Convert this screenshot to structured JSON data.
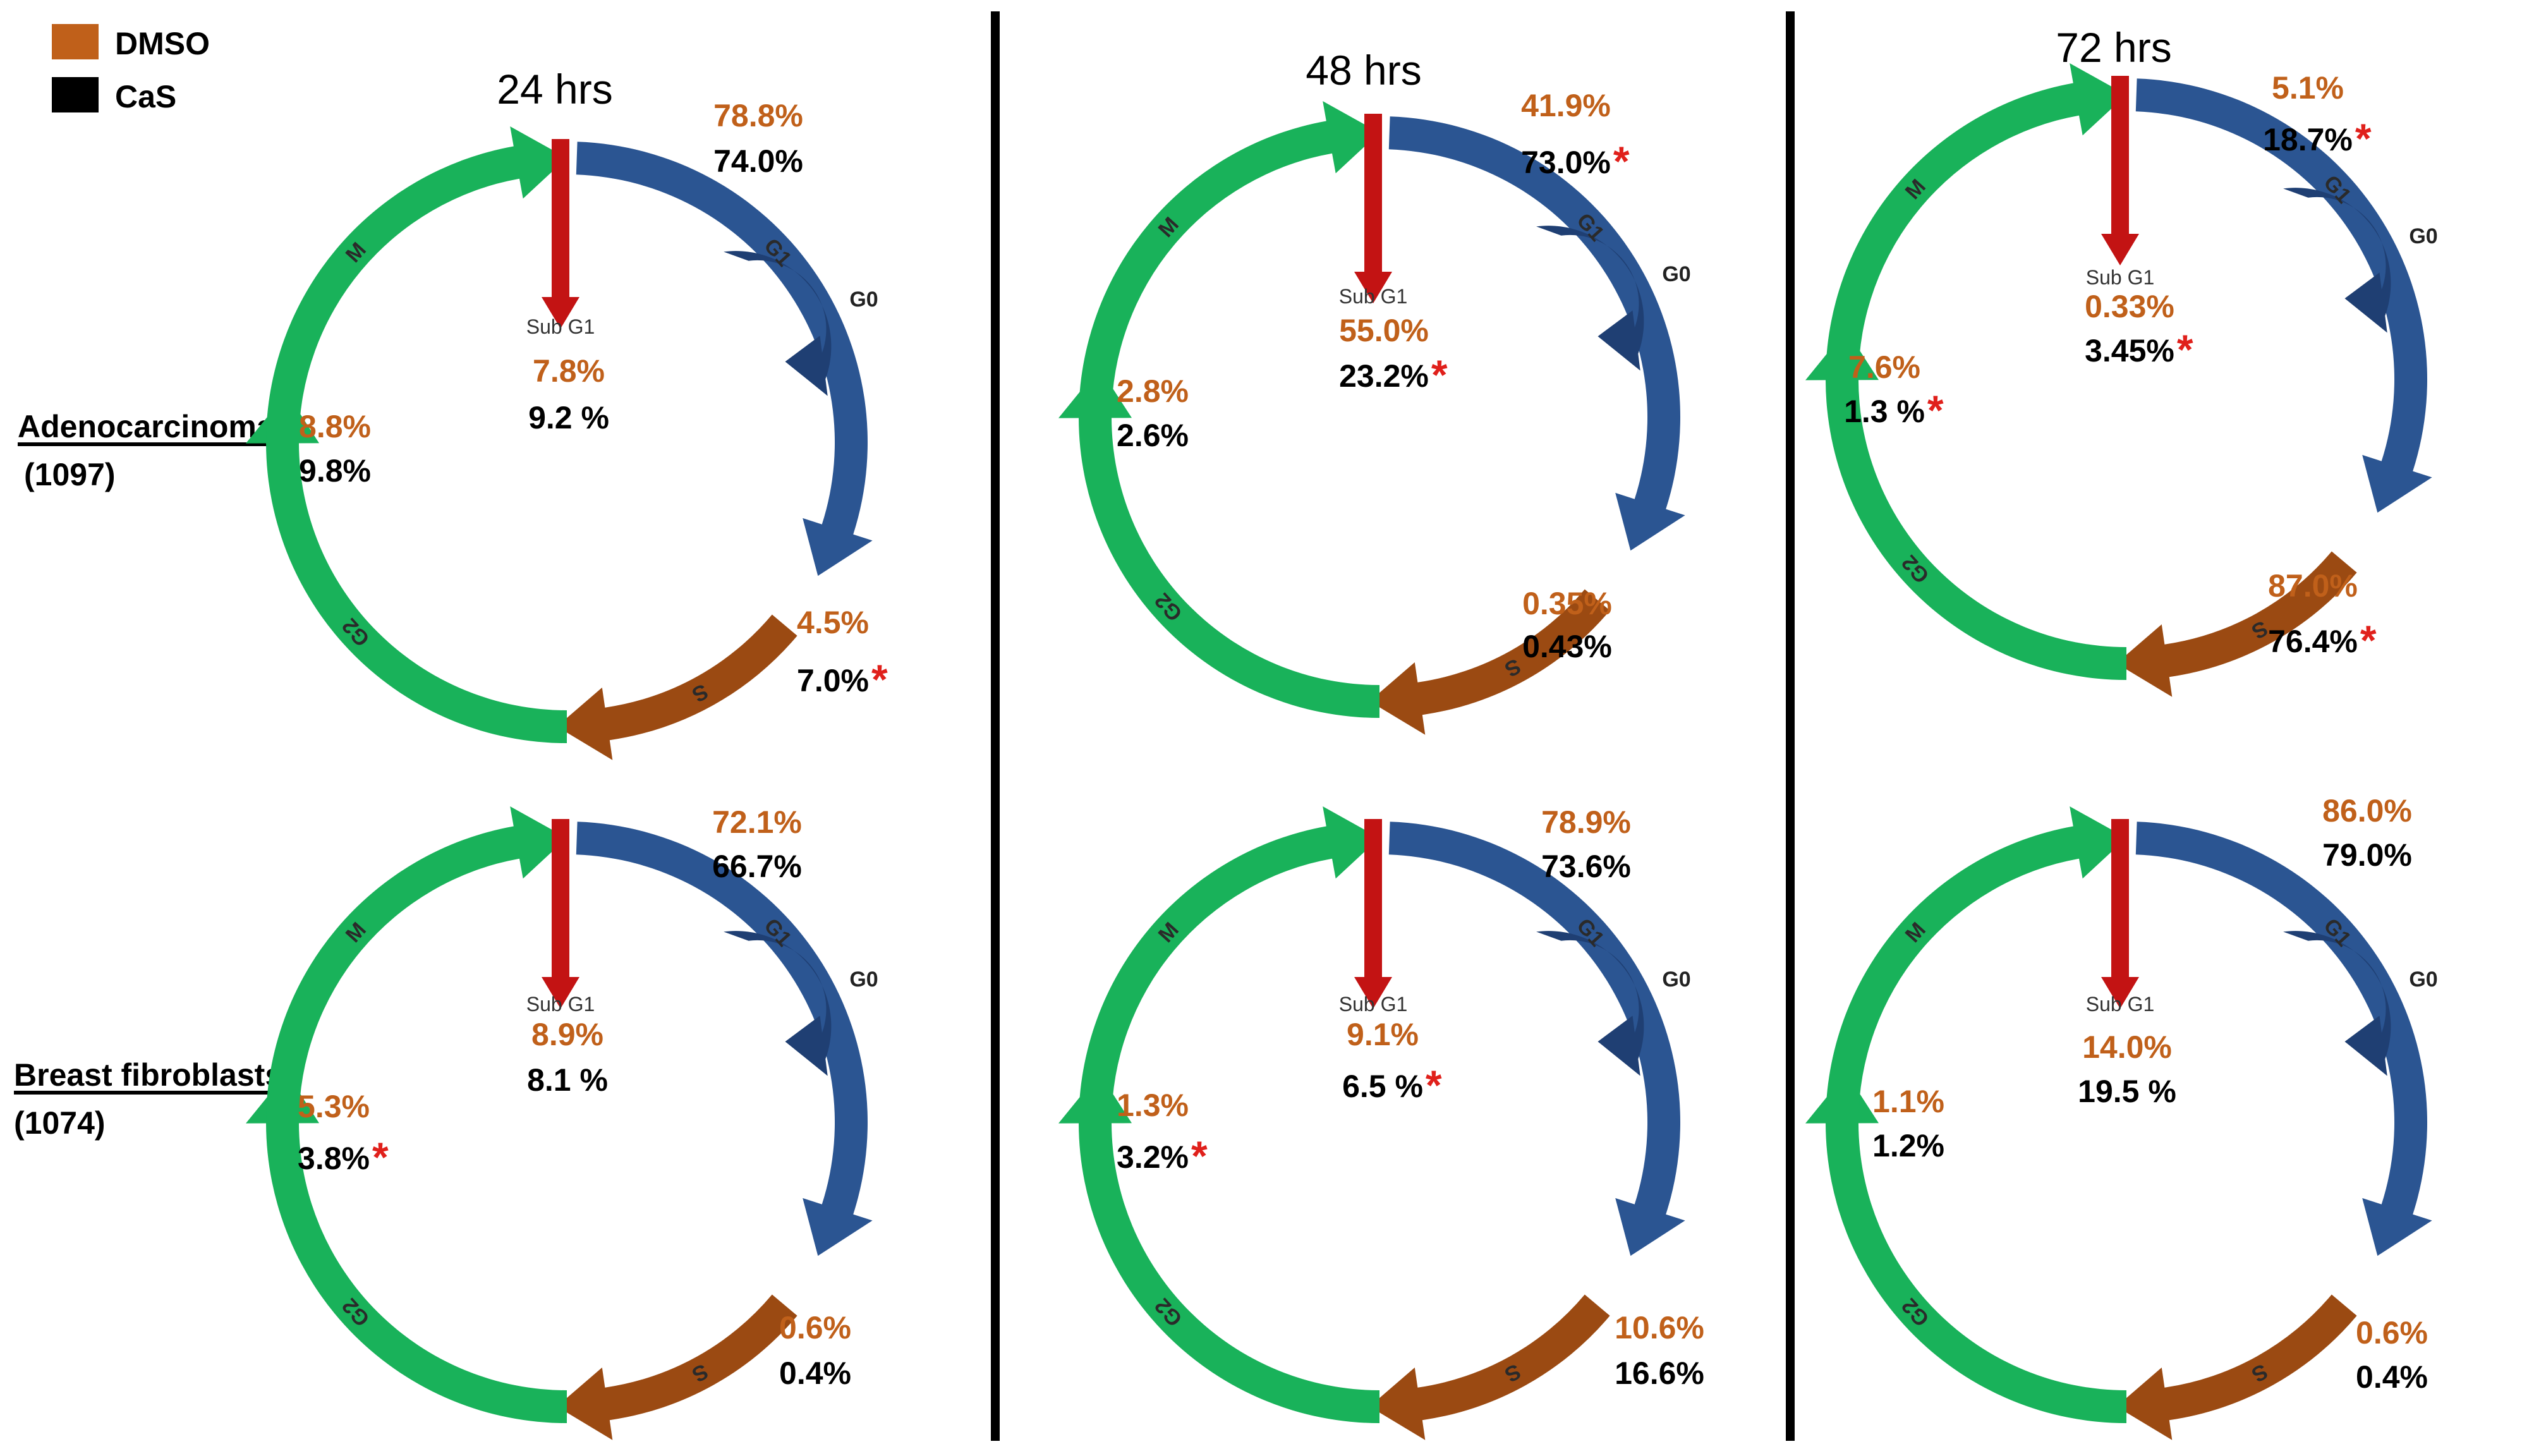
{
  "legend": {
    "items": [
      {
        "label": "DMSO",
        "color": "#c0601a"
      },
      {
        "label": "CaS",
        "color": "#000000"
      }
    ]
  },
  "colors": {
    "g1": "#2b5592",
    "g0": "#1f3f73",
    "s": "#9b4a12",
    "m_g2": "#19b25a",
    "subg1": "#c31313",
    "dmso_text": "#c0601a",
    "cas_text": "#000000",
    "star": "#e0201b"
  },
  "labels": {
    "sub_g1": "Sub G1",
    "g0": "G0",
    "g1": "G1",
    "s": "S",
    "g2": "G2",
    "m": "M"
  },
  "rows": [
    {
      "name": "Adenocarcinoma",
      "id": "(1097)"
    },
    {
      "name": "Breast fibroblasts",
      "id": "(1074)"
    }
  ],
  "columns": [
    {
      "time": "24 hrs"
    },
    {
      "time": "48 hrs"
    },
    {
      "time": "72 hrs"
    }
  ],
  "panels": [
    {
      "g1": {
        "dmso": "78.8%",
        "cas": "74.0%",
        "star": false
      },
      "subg1": {
        "dmso": "7.8%",
        "cas": "9.2 %",
        "star": false
      },
      "m": {
        "dmso": "8.8%",
        "cas": "9.8%",
        "star": false
      },
      "s": {
        "dmso": "4.5%",
        "cas": "7.0%",
        "star": true
      }
    },
    {
      "g1": {
        "dmso": "41.9%",
        "cas": "73.0%",
        "star": true
      },
      "subg1": {
        "dmso": "55.0%",
        "cas": "23.2%",
        "star": true
      },
      "m": {
        "dmso": "2.8%",
        "cas": "2.6%",
        "star": false
      },
      "s": {
        "dmso": "0.35%",
        "cas": "0.43%",
        "star": false
      }
    },
    {
      "g1": {
        "dmso": "5.1%",
        "cas": "18.7%",
        "star": true
      },
      "subg1": {
        "dmso": "0.33%",
        "cas": "3.45%",
        "star": true
      },
      "m": {
        "dmso": "7.6%",
        "cas": "1.3 %",
        "star": true
      },
      "s": {
        "dmso": "87.0%",
        "cas": "76.4%",
        "star": true
      }
    },
    {
      "g1": {
        "dmso": "72.1%",
        "cas": "66.7%",
        "star": false
      },
      "subg1": {
        "dmso": "8.9%",
        "cas": "8.1 %",
        "star": false
      },
      "m": {
        "dmso": "5.3%",
        "cas": "3.8%",
        "star": true
      },
      "s": {
        "dmso": "0.6%",
        "cas": "0.4%",
        "star": false
      }
    },
    {
      "g1": {
        "dmso": "78.9%",
        "cas": "73.6%",
        "star": false
      },
      "subg1": {
        "dmso": "9.1%",
        "cas": "6.5 %",
        "star": true
      },
      "m": {
        "dmso": "1.3%",
        "cas": "3.2%",
        "star": true
      },
      "s": {
        "dmso": "10.6%",
        "cas": "16.6%",
        "star": false
      }
    },
    {
      "g1": {
        "dmso": "86.0%",
        "cas": "79.0%",
        "star": false
      },
      "subg1": {
        "dmso": "14.0%",
        "cas": "19.5 %",
        "star": false
      },
      "m": {
        "dmso": "1.1%",
        "cas": "1.2%",
        "star": false
      },
      "s": {
        "dmso": "0.6%",
        "cas": "0.4%",
        "star": false
      }
    }
  ]
}
